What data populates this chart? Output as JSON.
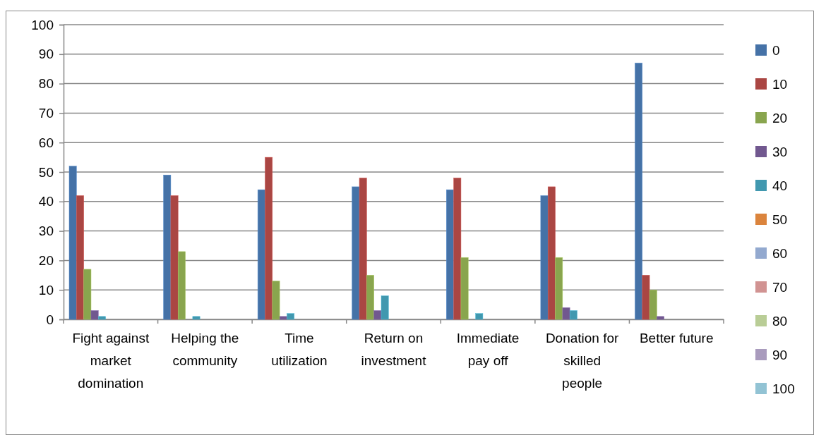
{
  "chart_data": {
    "type": "bar",
    "categories": [
      "Fight against market domination",
      "Helping the community",
      "Time utilization",
      "Return on investment",
      "Immediate pay off",
      "Donation for skilled people",
      "Better future"
    ],
    "series": [
      {
        "name": "0",
        "color": "#4572a7",
        "values": [
          52,
          49,
          44,
          45,
          44,
          42,
          87
        ]
      },
      {
        "name": "10",
        "color": "#aa4643",
        "values": [
          42,
          42,
          55,
          48,
          48,
          45,
          15
        ]
      },
      {
        "name": "20",
        "color": "#89a54e",
        "values": [
          17,
          23,
          13,
          15,
          21,
          21,
          10
        ]
      },
      {
        "name": "30",
        "color": "#71588f",
        "values": [
          3,
          0,
          1,
          3,
          0,
          4,
          1
        ]
      },
      {
        "name": "40",
        "color": "#4198af",
        "values": [
          1,
          1,
          2,
          8,
          2,
          3,
          0
        ]
      },
      {
        "name": "50",
        "color": "#db843d",
        "values": [
          0,
          0,
          0,
          0,
          0,
          0,
          0
        ]
      },
      {
        "name": "60",
        "color": "#93a9cf",
        "values": [
          0,
          0,
          0,
          0,
          0,
          0,
          0
        ]
      },
      {
        "name": "70",
        "color": "#d19392",
        "values": [
          0,
          0,
          0,
          0,
          0,
          0,
          0
        ]
      },
      {
        "name": "80",
        "color": "#b9cd96",
        "values": [
          0,
          0,
          0,
          0,
          0,
          0,
          0
        ]
      },
      {
        "name": "90",
        "color": "#a99bbd",
        "values": [
          0,
          0,
          0,
          0,
          0,
          0,
          0
        ]
      },
      {
        "name": "100",
        "color": "#92c3d4",
        "values": [
          0,
          0,
          0,
          0,
          0,
          0,
          0
        ]
      }
    ],
    "ylim": [
      0,
      100
    ],
    "yticks": [
      0,
      10,
      20,
      30,
      40,
      50,
      60,
      70,
      80,
      90,
      100
    ],
    "grid": "y",
    "legend": "right"
  }
}
